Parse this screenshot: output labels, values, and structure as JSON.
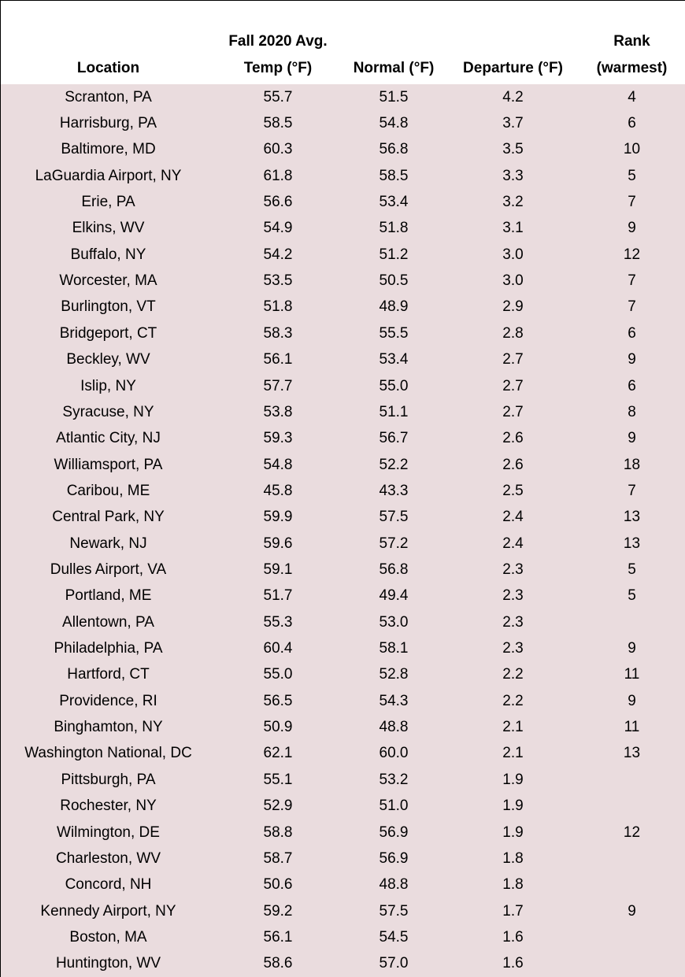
{
  "table": {
    "headers": [
      [
        "Location"
      ],
      [
        "Fall 2020 Avg.",
        "Temp (°F)"
      ],
      [
        "Normal (°F)"
      ],
      [
        "Departure (°F)"
      ],
      [
        "Rank",
        "(warmest)"
      ]
    ],
    "rows": [
      [
        "Scranton, PA",
        "55.7",
        "51.5",
        "4.2",
        "4"
      ],
      [
        "Harrisburg, PA",
        "58.5",
        "54.8",
        "3.7",
        "6"
      ],
      [
        "Baltimore, MD",
        "60.3",
        "56.8",
        "3.5",
        "10"
      ],
      [
        "LaGuardia Airport, NY",
        "61.8",
        "58.5",
        "3.3",
        "5"
      ],
      [
        "Erie, PA",
        "56.6",
        "53.4",
        "3.2",
        "7"
      ],
      [
        "Elkins, WV",
        "54.9",
        "51.8",
        "3.1",
        "9"
      ],
      [
        "Buffalo, NY",
        "54.2",
        "51.2",
        "3.0",
        "12"
      ],
      [
        "Worcester, MA",
        "53.5",
        "50.5",
        "3.0",
        "7"
      ],
      [
        "Burlington, VT",
        "51.8",
        "48.9",
        "2.9",
        "7"
      ],
      [
        "Bridgeport, CT",
        "58.3",
        "55.5",
        "2.8",
        "6"
      ],
      [
        "Beckley, WV",
        "56.1",
        "53.4",
        "2.7",
        "9"
      ],
      [
        "Islip, NY",
        "57.7",
        "55.0",
        "2.7",
        "6"
      ],
      [
        "Syracuse, NY",
        "53.8",
        "51.1",
        "2.7",
        "8"
      ],
      [
        "Atlantic City, NJ",
        "59.3",
        "56.7",
        "2.6",
        "9"
      ],
      [
        "Williamsport, PA",
        "54.8",
        "52.2",
        "2.6",
        "18"
      ],
      [
        "Caribou, ME",
        "45.8",
        "43.3",
        "2.5",
        "7"
      ],
      [
        "Central Park, NY",
        "59.9",
        "57.5",
        "2.4",
        "13"
      ],
      [
        "Newark, NJ",
        "59.6",
        "57.2",
        "2.4",
        "13"
      ],
      [
        "Dulles Airport, VA",
        "59.1",
        "56.8",
        "2.3",
        "5"
      ],
      [
        "Portland, ME",
        "51.7",
        "49.4",
        "2.3",
        "5"
      ],
      [
        "Allentown, PA",
        "55.3",
        "53.0",
        "2.3",
        null
      ],
      [
        "Philadelphia, PA",
        "60.4",
        "58.1",
        "2.3",
        "9"
      ],
      [
        "Hartford, CT",
        "55.0",
        "52.8",
        "2.2",
        "11"
      ],
      [
        "Providence, RI",
        "56.5",
        "54.3",
        "2.2",
        "9"
      ],
      [
        "Binghamton, NY",
        "50.9",
        "48.8",
        "2.1",
        "11"
      ],
      [
        "Washington National, DC",
        "62.1",
        "60.0",
        "2.1",
        "13"
      ],
      [
        "Pittsburgh, PA",
        "55.1",
        "53.2",
        "1.9",
        null
      ],
      [
        "Rochester, NY",
        "52.9",
        "51.0",
        "1.9",
        null
      ],
      [
        "Wilmington, DE",
        "58.8",
        "56.9",
        "1.9",
        "12"
      ],
      [
        "Charleston, WV",
        "58.7",
        "56.9",
        "1.8",
        null
      ],
      [
        "Concord, NH",
        "50.6",
        "48.8",
        "1.8",
        null
      ],
      [
        "Kennedy Airport, NY",
        "59.2",
        "57.5",
        "1.7",
        "9"
      ],
      [
        "Boston, MA",
        "56.1",
        "54.5",
        "1.6",
        null
      ],
      [
        "Huntington, WV",
        "58.6",
        "57.0",
        "1.6",
        null
      ]
    ]
  }
}
